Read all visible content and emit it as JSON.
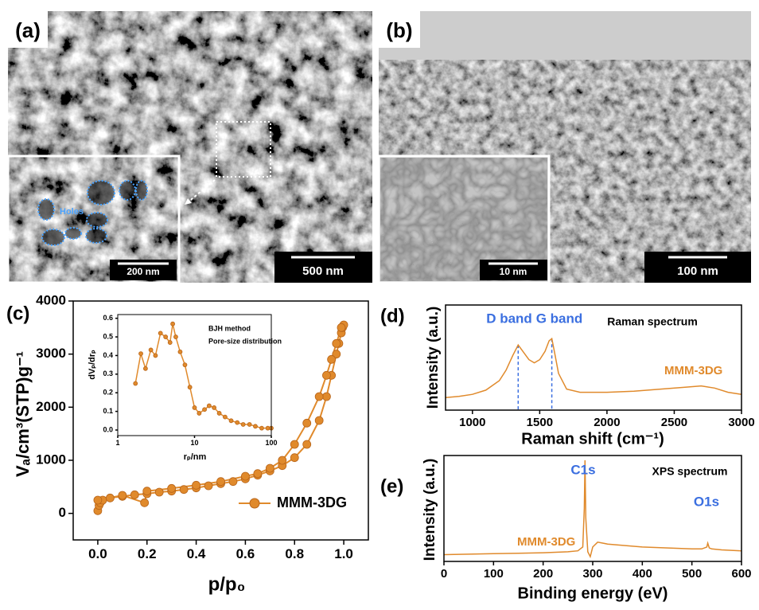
{
  "panels": {
    "a": {
      "label": "(a)",
      "annotation": "Holes",
      "inset_scale_bar": "200 nm",
      "scale_bar": "500 nm"
    },
    "b": {
      "label": "(b)",
      "inset_scale_bar": "10 nm",
      "scale_bar": "100 nm"
    }
  },
  "chart_data": [
    {
      "type": "line",
      "label": "(c)",
      "x_label": "p/p₀",
      "y_label": "Vₐ/cm³(STP)g⁻¹",
      "x": [
        0.0,
        0.005,
        0.01,
        0.02,
        0.05,
        0.1,
        0.15,
        0.2,
        0.25,
        0.3,
        0.35,
        0.4,
        0.45,
        0.5,
        0.55,
        0.6,
        0.65,
        0.7,
        0.75,
        0.8,
        0.85,
        0.9,
        0.93,
        0.95,
        0.97,
        0.98,
        0.99,
        0.995,
        1.0,
        0.99,
        0.97,
        0.95,
        0.93,
        0.9,
        0.85,
        0.8,
        0.75,
        0.7,
        0.65,
        0.6,
        0.5,
        0.4,
        0.3,
        0.2,
        0.19,
        0.1,
        0.0
      ],
      "series": [
        {
          "name": "MMM-3DG",
          "color": "#e08a2c",
          "values": [
            50,
            150,
            200,
            250,
            290,
            320,
            350,
            370,
            400,
            420,
            450,
            480,
            520,
            560,
            600,
            650,
            720,
            800,
            900,
            1050,
            1300,
            1750,
            2200,
            2600,
            3000,
            3200,
            3400,
            3500,
            3550,
            3500,
            3200,
            2900,
            2600,
            2200,
            1700,
            1300,
            1000,
            850,
            750,
            700,
            600,
            530,
            470,
            420,
            200,
            340,
            250
          ]
        }
      ],
      "xlim": [
        -0.1,
        1.1
      ],
      "xticks": [
        {
          "value": 0,
          "label": "0.0"
        },
        {
          "value": 0.2,
          "label": "0.2"
        },
        {
          "value": 0.4,
          "label": "0.4"
        },
        {
          "value": 0.6,
          "label": "0.6"
        },
        {
          "value": 0.8,
          "label": "0.8"
        },
        {
          "value": 1,
          "label": "1.0"
        }
      ],
      "ylim": [
        -500,
        4000
      ],
      "yticks": [
        0,
        1000,
        2000,
        3000,
        4000
      ],
      "legend": "lower right",
      "markers": true
    },
    {
      "type": "line",
      "x_label": "rₚ/nm",
      "y_label": "dVₚ/drₚ",
      "annotations": [
        "BJH method",
        "Pore-size distribution"
      ],
      "x": [
        1.7,
        2.0,
        2.3,
        2.7,
        3.1,
        3.6,
        4.2,
        4.8,
        5.2,
        5.7,
        6.5,
        7.5,
        8.7,
        10,
        11.5,
        13.5,
        15.5,
        18,
        21,
        25,
        30,
        36,
        43,
        52,
        62,
        75,
        90,
        100
      ],
      "series": [
        {
          "color": "#e08a2c",
          "values": [
            0.25,
            0.41,
            0.33,
            0.43,
            0.4,
            0.52,
            0.5,
            0.47,
            0.57,
            0.5,
            0.42,
            0.35,
            0.23,
            0.12,
            0.09,
            0.11,
            0.13,
            0.12,
            0.09,
            0.07,
            0.05,
            0.04,
            0.03,
            0.03,
            0.02,
            0.01,
            0.01,
            0.01
          ]
        }
      ],
      "xscale": "log",
      "xlim": [
        1,
        100
      ],
      "xticks": [
        1,
        10,
        100
      ],
      "ylim": [
        -0.03,
        0.62
      ],
      "yticks": [
        {
          "value": 0,
          "label": "0.0"
        },
        {
          "value": 0.1,
          "label": "0.1"
        },
        {
          "value": 0.2,
          "label": "0.2"
        },
        {
          "value": 0.3,
          "label": "0.3"
        },
        {
          "value": 0.4,
          "label": "0.4"
        },
        {
          "value": 0.5,
          "label": "0.5"
        },
        {
          "value": 0.6,
          "label": "0.6"
        }
      ],
      "markers": true
    },
    {
      "type": "line",
      "label": "(d)",
      "x_label": "Raman shift (cm⁻¹)",
      "y_label": "Intensity (a.u.)",
      "annotations": [
        "D band",
        "G band",
        "Raman spectrum"
      ],
      "x": [
        800,
        900,
        1000,
        1100,
        1200,
        1250,
        1300,
        1340,
        1380,
        1420,
        1460,
        1500,
        1540,
        1570,
        1590,
        1610,
        1640,
        1700,
        1800,
        1900,
        2000,
        2200,
        2400,
        2600,
        2700,
        2800,
        2900,
        3000
      ],
      "series": [
        {
          "name": "MMM-3DG",
          "color": "#e08a2c",
          "values": [
            0.12,
            0.13,
            0.15,
            0.19,
            0.28,
            0.38,
            0.52,
            0.62,
            0.55,
            0.48,
            0.45,
            0.48,
            0.56,
            0.66,
            0.68,
            0.55,
            0.35,
            0.2,
            0.17,
            0.17,
            0.17,
            0.18,
            0.2,
            0.22,
            0.23,
            0.21,
            0.17,
            0.15
          ]
        }
      ],
      "reference_lines": [
        1340,
        1590
      ],
      "reference_color": "#3b6fe0",
      "xlim": [
        800,
        3000
      ],
      "xticks": [
        1000,
        1500,
        2000,
        2500,
        3000
      ],
      "ylim": [
        0,
        1
      ]
    },
    {
      "type": "line",
      "label": "(e)",
      "x_label": "Binding energy (eV)",
      "y_label": "Intensity (a.u.)",
      "annotations": [
        "C1s",
        "O1s",
        "XPS spectrum"
      ],
      "x": [
        0,
        50,
        100,
        150,
        200,
        250,
        270,
        280,
        283,
        284.5,
        286,
        290,
        295,
        300,
        310,
        330,
        400,
        500,
        520,
        530,
        532,
        535,
        540,
        560,
        600
      ],
      "series": [
        {
          "name": "MMM-3DG",
          "color": "#e08a2c",
          "values": [
            0.02,
            0.025,
            0.03,
            0.035,
            0.04,
            0.05,
            0.06,
            0.1,
            0.5,
            1.0,
            0.4,
            0.05,
            0.0,
            0.1,
            0.15,
            0.13,
            0.1,
            0.08,
            0.08,
            0.1,
            0.14,
            0.09,
            0.08,
            0.07,
            0.06
          ]
        }
      ],
      "xlim": [
        0,
        600
      ],
      "xticks": [
        0,
        100,
        200,
        300,
        400,
        500,
        600
      ],
      "ylim": [
        -0.05,
        1.05
      ]
    }
  ]
}
